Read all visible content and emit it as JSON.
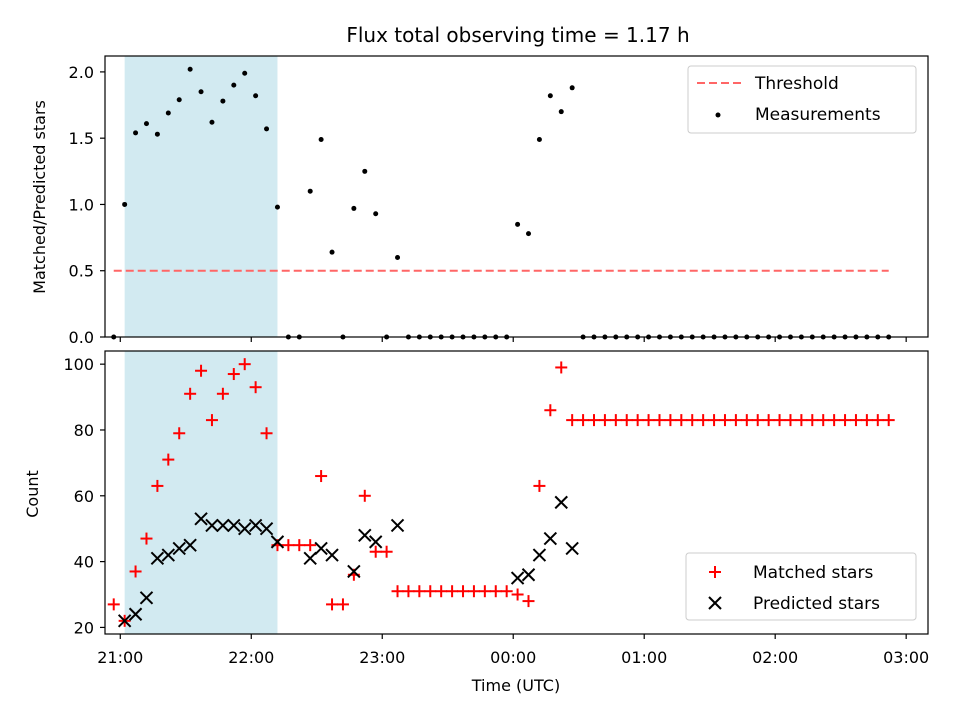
{
  "chart_data": [
    {
      "type": "scatter",
      "title": "Flux total observing time = 1.17 h",
      "xlabel": "",
      "ylabel": "Matched/Predicted stars",
      "xlim": [
        "20:53",
        "03:10"
      ],
      "ylim": [
        0,
        2.12
      ],
      "yticks": [
        "0.0",
        "0.5",
        "1.0",
        "1.5",
        "2.0"
      ],
      "xticks": [
        "21:00",
        "22:00",
        "23:00",
        "00:00",
        "01:00",
        "02:00",
        "03:00"
      ],
      "highlight_span": [
        "21:02",
        "22:12"
      ],
      "highlight_color": "#add8e6",
      "threshold": {
        "name": "Threshold",
        "value": 0.5,
        "x_start": "20:57",
        "x_end": "02:52",
        "color": "#ff6666",
        "style": "dashed"
      },
      "series": [
        {
          "name": "Measurements",
          "color": "#000000",
          "marker": "dot",
          "points": [
            [
              "20:57",
              0.0
            ],
            [
              "21:02",
              1.0
            ],
            [
              "21:07",
              1.54
            ],
            [
              "21:12",
              1.61
            ],
            [
              "21:17",
              1.53
            ],
            [
              "21:22",
              1.69
            ],
            [
              "21:27",
              1.79
            ],
            [
              "21:32",
              2.02
            ],
            [
              "21:37",
              1.85
            ],
            [
              "21:42",
              1.62
            ],
            [
              "21:47",
              1.78
            ],
            [
              "21:52",
              1.9
            ],
            [
              "21:57",
              1.99
            ],
            [
              "22:02",
              1.82
            ],
            [
              "22:07",
              1.57
            ],
            [
              "22:12",
              0.98
            ],
            [
              "22:17",
              0.0
            ],
            [
              "22:22",
              0.0
            ],
            [
              "22:27",
              1.1
            ],
            [
              "22:32",
              1.49
            ],
            [
              "22:37",
              0.64
            ],
            [
              "22:42",
              0.0
            ],
            [
              "22:47",
              0.97
            ],
            [
              "22:52",
              1.25
            ],
            [
              "22:57",
              0.93
            ],
            [
              "23:02",
              0.0
            ],
            [
              "23:07",
              0.6
            ],
            [
              "23:12",
              0.0
            ],
            [
              "23:17",
              0.0
            ],
            [
              "23:22",
              0.0
            ],
            [
              "23:27",
              0.0
            ],
            [
              "23:32",
              0.0
            ],
            [
              "23:37",
              0.0
            ],
            [
              "23:42",
              0.0
            ],
            [
              "23:47",
              0.0
            ],
            [
              "23:52",
              0.0
            ],
            [
              "23:57",
              0.0
            ],
            [
              "00:02",
              0.85
            ],
            [
              "00:07",
              0.78
            ],
            [
              "00:12",
              1.49
            ],
            [
              "00:17",
              1.82
            ],
            [
              "00:22",
              1.7
            ],
            [
              "00:27",
              1.88
            ],
            [
              "00:32",
              0.0
            ],
            [
              "00:37",
              0.0
            ],
            [
              "00:42",
              0.0
            ],
            [
              "00:47",
              0.0
            ],
            [
              "00:52",
              0.0
            ],
            [
              "00:57",
              0.0
            ],
            [
              "01:02",
              0.0
            ],
            [
              "01:07",
              0.0
            ],
            [
              "01:12",
              0.0
            ],
            [
              "01:17",
              0.0
            ],
            [
              "01:22",
              0.0
            ],
            [
              "01:27",
              0.0
            ],
            [
              "01:32",
              0.0
            ],
            [
              "01:37",
              0.0
            ],
            [
              "01:42",
              0.0
            ],
            [
              "01:47",
              0.0
            ],
            [
              "01:52",
              0.0
            ],
            [
              "01:57",
              0.0
            ],
            [
              "02:02",
              0.0
            ],
            [
              "02:07",
              0.0
            ],
            [
              "02:12",
              0.0
            ],
            [
              "02:17",
              0.0
            ],
            [
              "02:22",
              0.0
            ],
            [
              "02:27",
              0.0
            ],
            [
              "02:32",
              0.0
            ],
            [
              "02:37",
              0.0
            ],
            [
              "02:42",
              0.0
            ],
            [
              "02:47",
              0.0
            ],
            [
              "02:52",
              0.0
            ]
          ]
        }
      ],
      "legend": {
        "placement": "top-right",
        "entries": [
          "Threshold",
          "Measurements"
        ]
      }
    },
    {
      "type": "scatter",
      "title": "",
      "xlabel": "Time (UTC)",
      "ylabel": "Count",
      "xlim": [
        "20:53",
        "03:10"
      ],
      "ylim": [
        18,
        104
      ],
      "yticks": [
        "20",
        "40",
        "60",
        "80",
        "100"
      ],
      "xticks": [
        "21:00",
        "22:00",
        "23:00",
        "00:00",
        "01:00",
        "02:00",
        "03:00"
      ],
      "highlight_span": [
        "21:02",
        "22:12"
      ],
      "highlight_color": "#add8e6",
      "series": [
        {
          "name": "Matched stars",
          "color": "#ff0000",
          "marker": "plus",
          "points": [
            [
              "20:57",
              27
            ],
            [
              "21:02",
              22
            ],
            [
              "21:07",
              37
            ],
            [
              "21:12",
              47
            ],
            [
              "21:17",
              63
            ],
            [
              "21:22",
              71
            ],
            [
              "21:27",
              79
            ],
            [
              "21:32",
              91
            ],
            [
              "21:37",
              98
            ],
            [
              "21:42",
              83
            ],
            [
              "21:47",
              91
            ],
            [
              "21:52",
              97
            ],
            [
              "21:57",
              100
            ],
            [
              "22:02",
              93
            ],
            [
              "22:07",
              79
            ],
            [
              "22:12",
              45
            ],
            [
              "22:17",
              45
            ],
            [
              "22:22",
              45
            ],
            [
              "22:27",
              45
            ],
            [
              "22:32",
              66
            ],
            [
              "22:37",
              27
            ],
            [
              "22:42",
              27
            ],
            [
              "22:47",
              36
            ],
            [
              "22:52",
              60
            ],
            [
              "22:57",
              43
            ],
            [
              "23:02",
              43
            ],
            [
              "23:07",
              31
            ],
            [
              "23:12",
              31
            ],
            [
              "23:17",
              31
            ],
            [
              "23:22",
              31
            ],
            [
              "23:27",
              31
            ],
            [
              "23:32",
              31
            ],
            [
              "23:37",
              31
            ],
            [
              "23:42",
              31
            ],
            [
              "23:47",
              31
            ],
            [
              "23:52",
              31
            ],
            [
              "23:57",
              31
            ],
            [
              "00:02",
              30
            ],
            [
              "00:07",
              28
            ],
            [
              "00:12",
              63
            ],
            [
              "00:17",
              86
            ],
            [
              "00:22",
              99
            ],
            [
              "00:27",
              83
            ],
            [
              "00:32",
              83
            ],
            [
              "00:37",
              83
            ],
            [
              "00:42",
              83
            ],
            [
              "00:47",
              83
            ],
            [
              "00:52",
              83
            ],
            [
              "00:57",
              83
            ],
            [
              "01:02",
              83
            ],
            [
              "01:07",
              83
            ],
            [
              "01:12",
              83
            ],
            [
              "01:17",
              83
            ],
            [
              "01:22",
              83
            ],
            [
              "01:27",
              83
            ],
            [
              "01:32",
              83
            ],
            [
              "01:37",
              83
            ],
            [
              "01:42",
              83
            ],
            [
              "01:47",
              83
            ],
            [
              "01:52",
              83
            ],
            [
              "01:57",
              83
            ],
            [
              "02:02",
              83
            ],
            [
              "02:07",
              83
            ],
            [
              "02:12",
              83
            ],
            [
              "02:17",
              83
            ],
            [
              "02:22",
              83
            ],
            [
              "02:27",
              83
            ],
            [
              "02:32",
              83
            ],
            [
              "02:37",
              83
            ],
            [
              "02:42",
              83
            ],
            [
              "02:47",
              83
            ],
            [
              "02:52",
              83
            ]
          ]
        },
        {
          "name": "Predicted stars",
          "color": "#000000",
          "marker": "x",
          "points": [
            [
              "21:02",
              22
            ],
            [
              "21:07",
              24
            ],
            [
              "21:12",
              29
            ],
            [
              "21:17",
              41
            ],
            [
              "21:22",
              42
            ],
            [
              "21:27",
              44
            ],
            [
              "21:32",
              45
            ],
            [
              "21:37",
              53
            ],
            [
              "21:42",
              51
            ],
            [
              "21:47",
              51
            ],
            [
              "21:52",
              51
            ],
            [
              "21:57",
              50
            ],
            [
              "22:02",
              51
            ],
            [
              "22:07",
              50
            ],
            [
              "22:12",
              46
            ],
            [
              "22:27",
              41
            ],
            [
              "22:32",
              44
            ],
            [
              "22:37",
              42
            ],
            [
              "22:47",
              37
            ],
            [
              "22:52",
              48
            ],
            [
              "22:57",
              46
            ],
            [
              "23:07",
              51
            ],
            [
              "00:02",
              35
            ],
            [
              "00:07",
              36
            ],
            [
              "00:12",
              42
            ],
            [
              "00:17",
              47
            ],
            [
              "00:22",
              58
            ],
            [
              "00:27",
              44
            ]
          ]
        }
      ],
      "legend": {
        "placement": "bottom-right",
        "entries": [
          "Matched stars",
          "Predicted stars"
        ]
      }
    }
  ]
}
